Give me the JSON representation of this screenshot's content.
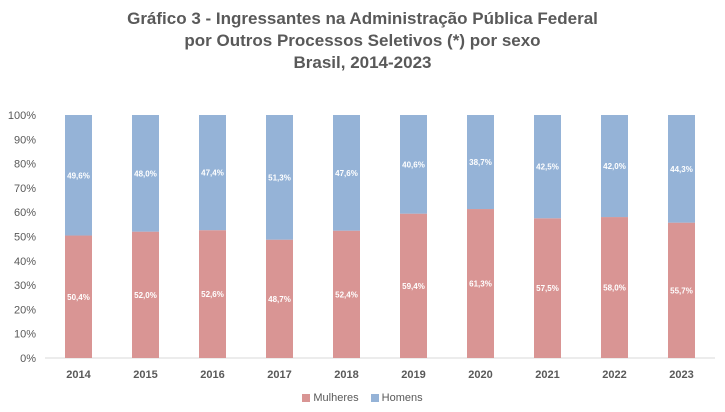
{
  "chart_data": {
    "type": "bar",
    "stacked": true,
    "title": [
      "Gráfico 3 - Ingressantes na Administração Pública Federal",
      "por Outros Processos Seletivos (*) por sexo",
      "Brasil, 2014-2023"
    ],
    "categories": [
      "2014",
      "2015",
      "2016",
      "2017",
      "2018",
      "2019",
      "2020",
      "2021",
      "2022",
      "2023"
    ],
    "series": [
      {
        "name": "Mulheres",
        "color": "#d99594",
        "values": [
          50.4,
          52.0,
          52.6,
          48.7,
          52.4,
          59.4,
          61.3,
          57.5,
          58.0,
          55.7
        ],
        "labels": [
          "50,4%",
          "52,0%",
          "52,6%",
          "48,7%",
          "52,4%",
          "59,4%",
          "61,3%",
          "57,5%",
          "58,0%",
          "55,7%"
        ]
      },
      {
        "name": "Homens",
        "color": "#95b3d7",
        "values": [
          49.6,
          48.0,
          47.4,
          51.3,
          47.6,
          40.6,
          38.7,
          42.5,
          42.0,
          44.3
        ],
        "labels": [
          "49,6%",
          "48,0%",
          "47,4%",
          "51,3%",
          "47,6%",
          "40,6%",
          "38,7%",
          "42,5%",
          "42,0%",
          "44,3%"
        ]
      }
    ],
    "yticks": [
      "0%",
      "10%",
      "20%",
      "30%",
      "40%",
      "50%",
      "60%",
      "70%",
      "80%",
      "90%",
      "100%"
    ],
    "ylim": [
      0,
      100
    ],
    "xlabel": "",
    "ylabel": "",
    "grid": false,
    "legend_position": "bottom"
  }
}
